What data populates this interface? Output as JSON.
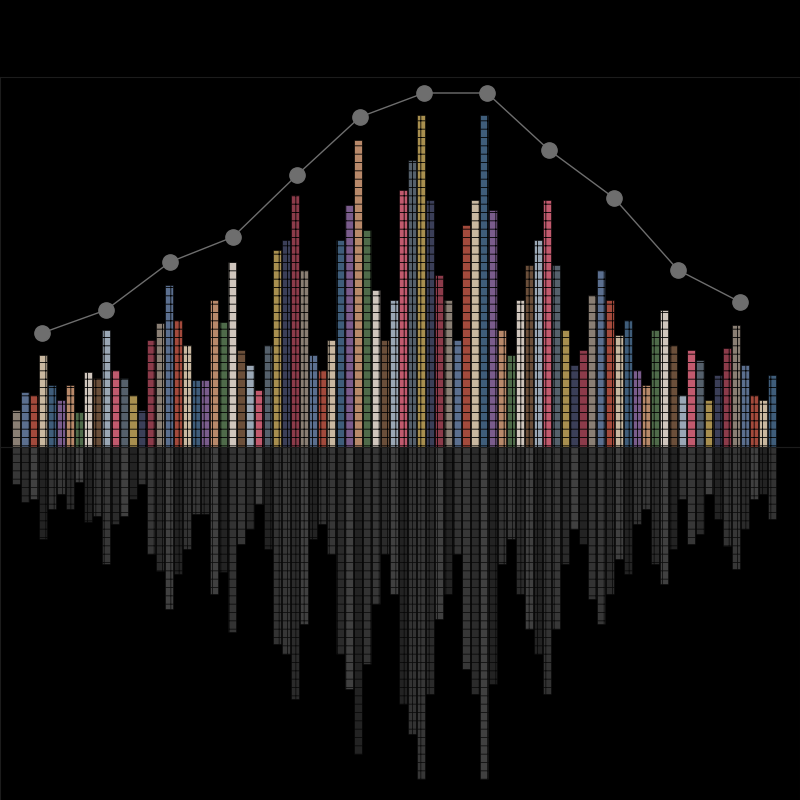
{
  "chart_data": {
    "type": "bar",
    "xlim": [
      0,
      800
    ],
    "ylim": [
      0,
      370
    ],
    "xticks": [],
    "yticks": [],
    "tick_labels": false,
    "series": [
      {
        "type": "bar",
        "x": [
          16,
          25,
          34,
          43,
          52,
          61,
          70,
          79,
          88,
          97,
          106,
          115,
          124,
          133,
          142,
          151,
          160,
          169,
          178,
          187,
          196,
          205,
          214,
          223,
          232,
          241,
          250,
          259,
          268,
          277,
          286,
          295,
          304,
          313,
          322,
          331,
          340,
          349,
          358,
          367,
          376,
          385,
          394,
          403,
          412,
          421,
          430,
          439,
          448,
          457,
          466,
          475,
          484,
          493,
          502,
          511,
          520,
          529,
          538,
          547,
          556,
          565,
          574,
          583,
          592,
          601,
          610,
          619,
          628,
          637,
          646,
          655,
          664,
          673,
          682,
          691,
          700,
          709,
          718,
          727,
          736,
          745,
          754,
          763,
          772
        ],
        "values": [
          37,
          55,
          52,
          92,
          62,
          47,
          62,
          35,
          75,
          69,
          117,
          77,
          69,
          52,
          37,
          107,
          124,
          162,
          127,
          102,
          67,
          67,
          147,
          125,
          185,
          97,
          82,
          57,
          102,
          197,
          207,
          252,
          177,
          92,
          77,
          107,
          207,
          242,
          307,
          217,
          157,
          107,
          147,
          257,
          287,
          332,
          247,
          172,
          147,
          107,
          222,
          247,
          332,
          237,
          117,
          92,
          147,
          182,
          207,
          247,
          182,
          117,
          82,
          97,
          152,
          177,
          147,
          112,
          127,
          77,
          62,
          117,
          137,
          102,
          52,
          97,
          87,
          47,
          72,
          99,
          122,
          82,
          52,
          47,
          72
        ]
      },
      {
        "type": "line",
        "color": "#6e6e6e",
        "marker": "circle",
        "x": [
          42,
          106,
          170,
          233,
          297,
          360,
          424,
          487,
          549,
          614,
          678,
          740
        ],
        "values": [
          114,
          137,
          185,
          210,
          272,
          330,
          354,
          354,
          297,
          249,
          177,
          145
        ]
      }
    ]
  }
}
